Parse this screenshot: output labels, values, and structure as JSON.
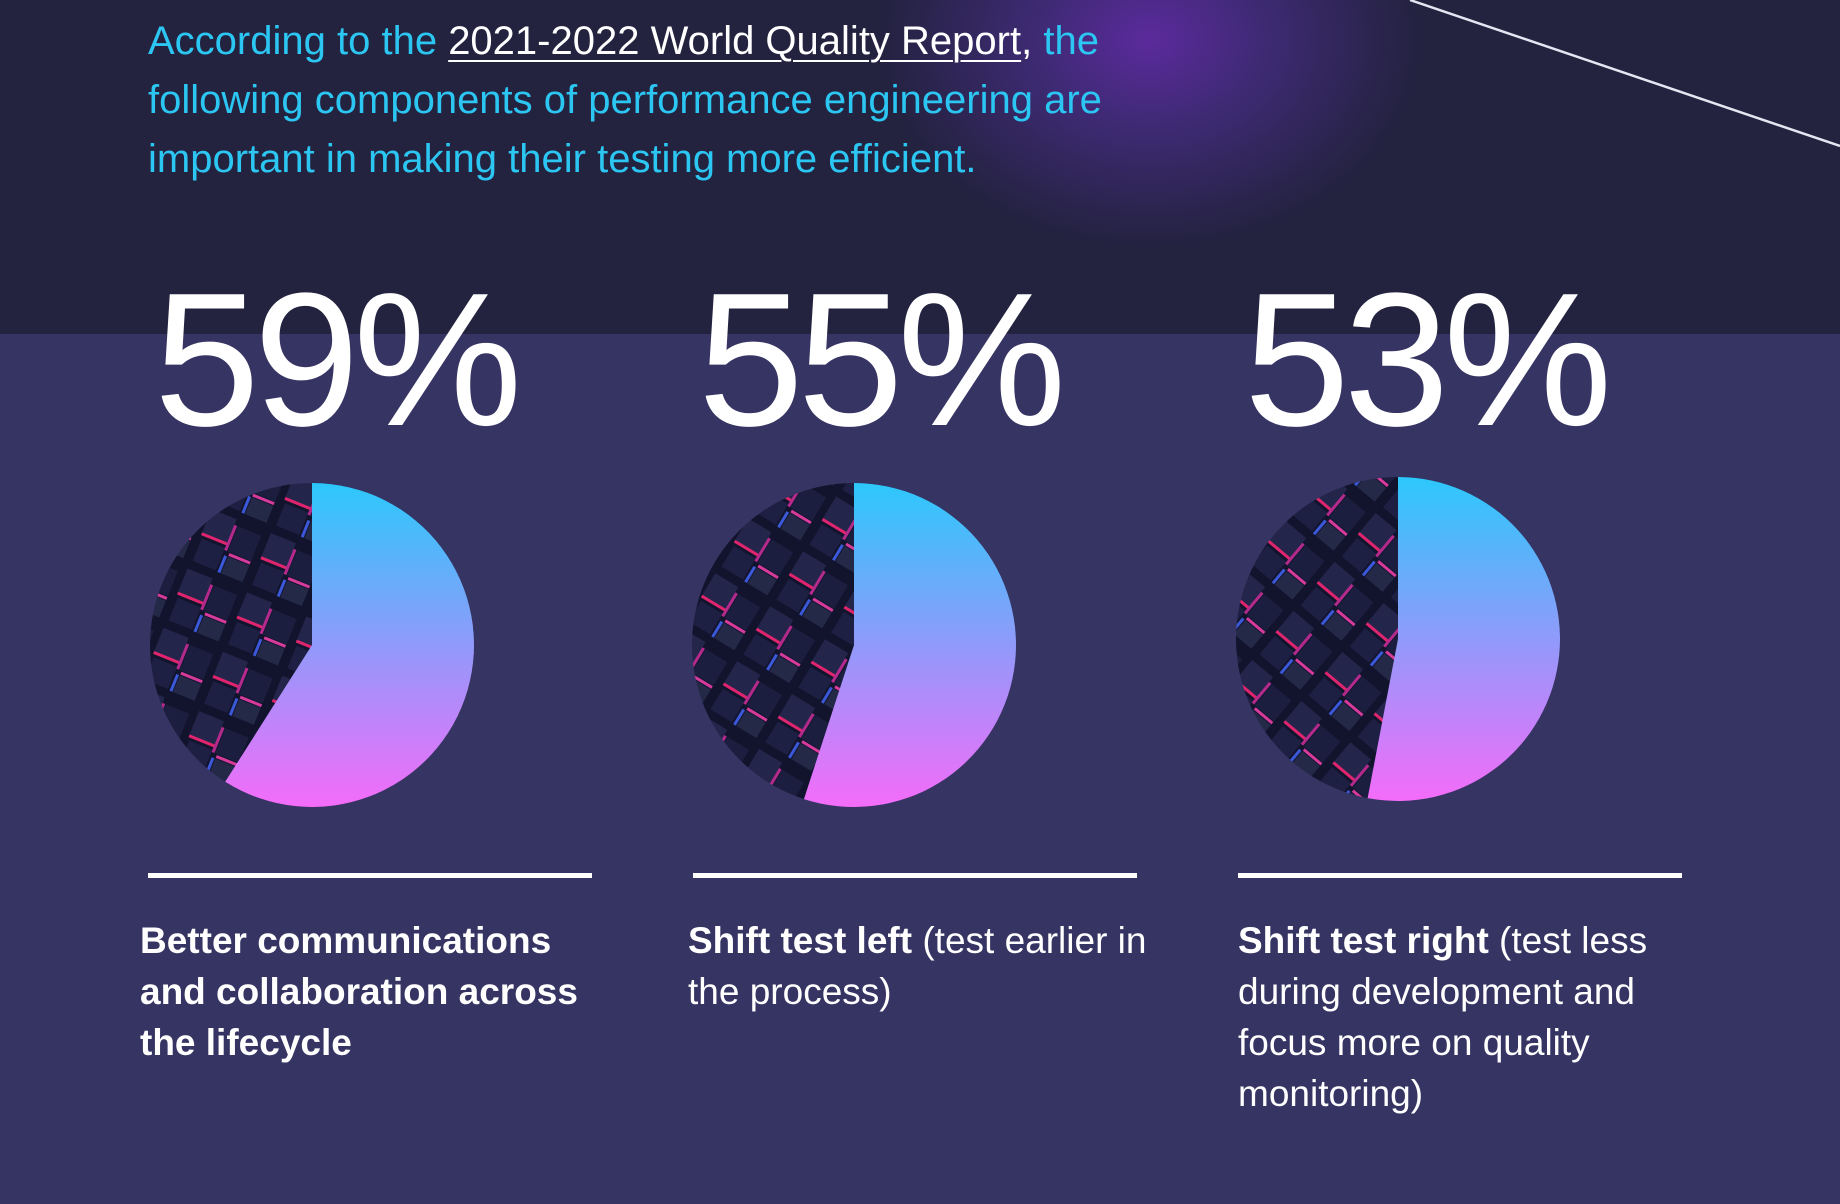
{
  "intro": {
    "lead": "According to the",
    "report_link": "2021-2022 World Quality Report",
    "comma": ",",
    "rest": " the following components of performance engineering are important in making their testing more efficient."
  },
  "chart_data": {
    "type": "pie",
    "charts": [
      {
        "value": 59,
        "label": "59%",
        "bold": "Better communications and collaboration across the lifecycle",
        "normal": ""
      },
      {
        "value": 55,
        "label": "55%",
        "bold": "Shift test left",
        "normal": " (test earlier in the process)"
      },
      {
        "value": 53,
        "label": "53%",
        "bold": "Shift test right",
        "normal": " (test less during development and focus more on quality monitoring)"
      }
    ],
    "slice_gradient": [
      "#2cc8fb",
      "#f46cf9"
    ],
    "remainder_style": "dark abstract cube texture"
  },
  "colors": {
    "accent": "#2cc6f2",
    "background_top": "#23223f",
    "background_main": "#363463"
  }
}
